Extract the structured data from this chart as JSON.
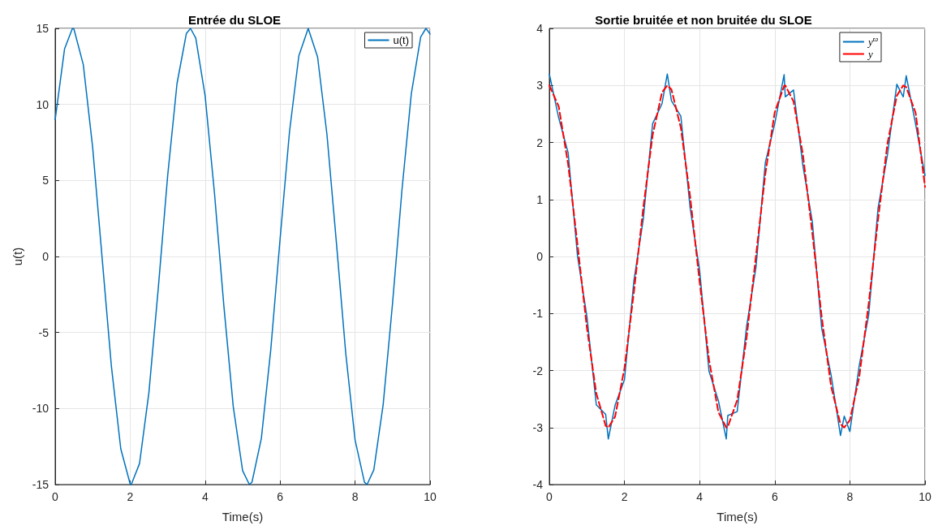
{
  "chart_data": [
    {
      "type": "line",
      "title": "Entrée du SLOE",
      "xlabel": "Time(s)",
      "ylabel": "u(t)",
      "legend": "top right",
      "grid": true,
      "marker": "none",
      "line_style": "solid",
      "xlim": [
        0,
        10
      ],
      "xticks": [
        0,
        2,
        4,
        6,
        8,
        10
      ],
      "ylim": [
        -15,
        15
      ],
      "yticks": [
        -15,
        -10,
        -5,
        0,
        5,
        10,
        15
      ],
      "x": [
        0,
        0.25,
        0.46,
        0.5,
        0.75,
        1,
        1.25,
        1.5,
        1.75,
        2,
        2.03,
        2.25,
        2.5,
        2.75,
        3,
        3.25,
        3.5,
        3.61,
        3.75,
        4,
        4.25,
        4.5,
        4.75,
        5,
        5.18,
        5.25,
        5.5,
        5.75,
        6,
        6.25,
        6.5,
        6.75,
        7,
        7.25,
        7.5,
        7.75,
        8,
        8.25,
        8.32,
        8.5,
        8.75,
        9,
        9.25,
        9.5,
        9.75,
        9.89,
        10
      ],
      "series": [
        {
          "name": "u(t)",
          "color": "#0072bd",
          "values": [
            9,
            13.65,
            15,
            14.96,
            12.62,
            7.17,
            -0.03,
            -7.23,
            -12.65,
            -14.96,
            -15,
            -13.62,
            -8.96,
            -2.09,
            5.29,
            11.37,
            14.67,
            15,
            14.37,
            10.56,
            4.15,
            -3.25,
            -9.87,
            -14.09,
            -15,
            -14.84,
            -11.96,
            -6.16,
            1.16,
            8.18,
            13.2,
            15,
            13.12,
            8.02,
            0.97,
            -6.34,
            -12.07,
            -14.85,
            -15,
            -14.03,
            -9.73,
            -3.07,
            4.35,
            10.7,
            14.43,
            15,
            14.63
          ]
        }
      ]
    },
    {
      "type": "line",
      "title": "Sortie bruitée et non bruitée du SLOE",
      "xlabel": "Time(s)",
      "legend": "top right",
      "grid": true,
      "marker": "none",
      "xlim": [
        0,
        10
      ],
      "xticks": [
        0,
        2,
        4,
        6,
        8,
        10
      ],
      "ylim": [
        -4,
        4
      ],
      "yticks": [
        -4,
        -3,
        -2,
        -1,
        0,
        1,
        2,
        3,
        4
      ],
      "x": [
        0,
        0.25,
        0.5,
        0.75,
        1,
        1.25,
        1.5,
        1.57,
        1.75,
        2,
        2.25,
        2.5,
        2.75,
        3,
        3.14,
        3.25,
        3.5,
        3.75,
        4,
        4.25,
        4.5,
        4.71,
        4.75,
        5,
        5.25,
        5.5,
        5.75,
        6,
        6.25,
        6.28,
        6.5,
        6.75,
        7,
        7.25,
        7.5,
        7.75,
        7.85,
        8,
        8.25,
        8.5,
        8.75,
        9,
        9.25,
        9.42,
        9.5,
        9.75,
        10
      ],
      "series": [
        {
          "name": "y$^{ϖ}$",
          "color": "#0072bd",
          "line_style": "solid",
          "values": [
            3.2,
            2.43,
            1.82,
            0.01,
            -1.05,
            -2.6,
            -2.77,
            -3.2,
            -2.61,
            -2.16,
            -0.43,
            0.65,
            2.33,
            2.68,
            3.2,
            2.73,
            2.46,
            0.84,
            -0.24,
            -2.01,
            -2.53,
            -3.2,
            -2.79,
            -2.72,
            -1.23,
            -0.19,
            1.65,
            2.33,
            3.19,
            2.8,
            2.92,
            1.59,
            0.61,
            -1.26,
            -2.08,
            -3.14,
            -2.8,
            -3.07,
            -1.91,
            -1.03,
            0.85,
            1.78,
            3.02,
            2.8,
            3.17,
            2.32,
            1.42
          ]
        },
        {
          "name": "y",
          "color": "#ff0000",
          "line_style": "dashed",
          "values": [
            3,
            2.63,
            1.62,
            0.21,
            -1.25,
            -2.4,
            -2.97,
            -3,
            -2.81,
            -1.96,
            -0.63,
            0.85,
            2.13,
            2.88,
            3,
            2.93,
            2.26,
            1.04,
            -0.44,
            -1.81,
            -2.73,
            -3,
            -2.99,
            -2.52,
            -1.43,
            0.01,
            1.45,
            2.53,
            2.99,
            3,
            2.72,
            1.79,
            0.41,
            -1.06,
            -2.28,
            -2.94,
            -3,
            -2.87,
            -2.11,
            -0.83,
            0.65,
            1.98,
            2.82,
            3,
            2.97,
            2.52,
            1.22
          ]
        }
      ]
    }
  ]
}
